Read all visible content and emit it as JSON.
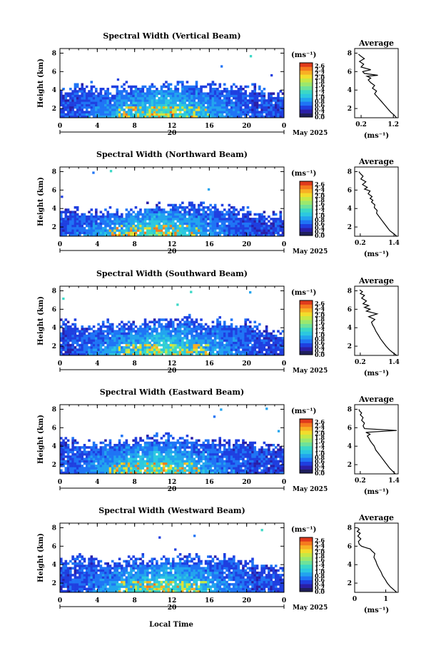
{
  "figure": {
    "xlabel": "Local Time",
    "day_label": "20",
    "month_label": "May 2025"
  },
  "colorbar": {
    "unit": "(ms⁻¹)",
    "ticks": [
      "2.6",
      "2.4",
      "2.2",
      "2.0",
      "1.8",
      "1.6",
      "1.4",
      "1.2",
      "1.0",
      "0.8",
      "0.6",
      "0.4",
      "0.2",
      "0.0"
    ],
    "colors": [
      "#1f1f5c",
      "#2a1fa8",
      "#1f3fe0",
      "#1f74f5",
      "#22a4ee",
      "#2cc8e0",
      "#3bd8c6",
      "#6ee29a",
      "#9be86d",
      "#c6e846",
      "#f2dd2c",
      "#f8b024",
      "#f57a1f",
      "#e03a1c"
    ]
  },
  "chart_data": [
    {
      "type": "heatmap",
      "title": "Spectral Width (Vertical Beam)",
      "ylabel": "Height (km)",
      "x_ticks": [
        "0",
        "4",
        "8",
        "12",
        "16",
        "20",
        "0"
      ],
      "y_ticks": [
        "2",
        "4",
        "6",
        "8"
      ],
      "xlim": [
        0,
        24
      ],
      "ylim": [
        1,
        8.5
      ],
      "echo_top_km": [
        4.0,
        4.2,
        4.4,
        4.3,
        4.2,
        4.3,
        4.4,
        4.5,
        4.6,
        4.4,
        4.5,
        4.6,
        4.6,
        4.7,
        4.6,
        4.5,
        4.6,
        4.5,
        4.4,
        4.4,
        4.2,
        4.1,
        3.8,
        3.6,
        3.5
      ],
      "peak_time_h": 11,
      "peak_width": 2.4
    },
    {
      "type": "line",
      "title": "Average",
      "xlabel": "(ms⁻¹)",
      "x_ticks": [
        "0.2",
        "1.2"
      ],
      "y_ticks": [
        "2",
        "4",
        "6",
        "8"
      ],
      "xlim": [
        0,
        1.35
      ],
      "ylim": [
        1,
        8.5
      ],
      "x": [
        1.3,
        1.22,
        1.12,
        1.02,
        0.92,
        0.82,
        0.72,
        0.62,
        0.68,
        0.55,
        0.62,
        0.5,
        0.42,
        0.5,
        0.38,
        0.72,
        0.3,
        0.25,
        0.5,
        0.2,
        0.28,
        0.15,
        0.3,
        0.18,
        0.12
      ],
      "y": [
        1.0,
        1.3,
        1.6,
        2.0,
        2.4,
        2.8,
        3.2,
        3.6,
        3.9,
        4.2,
        4.5,
        4.8,
        5.1,
        5.3,
        5.5,
        5.6,
        5.8,
        6.0,
        6.2,
        6.5,
        6.8,
        7.1,
        7.4,
        7.7,
        7.9
      ]
    },
    {
      "type": "heatmap",
      "title": "Spectral Width (Northward Beam)",
      "ylabel": "Height (km)",
      "x_ticks": [
        "0",
        "4",
        "8",
        "12",
        "16",
        "20",
        "0"
      ],
      "y_ticks": [
        "2",
        "4",
        "6",
        "8"
      ],
      "xlim": [
        0,
        24
      ],
      "ylim": [
        1,
        8.5
      ],
      "echo_top_km": [
        3.7,
        3.8,
        3.6,
        3.5,
        3.6,
        3.8,
        3.9,
        4.0,
        4.1,
        4.2,
        4.3,
        4.3,
        4.4,
        4.5,
        4.4,
        4.3,
        4.3,
        4.1,
        4.0,
        3.8,
        3.6,
        3.4,
        3.2,
        3.1,
        3.0
      ],
      "peak_time_h": 10,
      "peak_width": 2.5
    },
    {
      "type": "line",
      "title": "Average",
      "xlabel": "(ms⁻¹)",
      "x_ticks": [
        "0.2",
        "1.4"
      ],
      "y_ticks": [
        "2",
        "4",
        "6",
        "8"
      ],
      "xlim": [
        0,
        1.55
      ],
      "ylim": [
        1,
        8.5
      ],
      "x": [
        1.5,
        1.38,
        1.25,
        1.15,
        1.05,
        0.95,
        0.85,
        0.78,
        0.8,
        0.7,
        0.72,
        0.6,
        0.65,
        0.55,
        0.62,
        0.48,
        0.55,
        0.35,
        0.45,
        0.28,
        0.4,
        0.22,
        0.3,
        0.2,
        0.15
      ],
      "y": [
        1.0,
        1.3,
        1.6,
        2.0,
        2.4,
        2.8,
        3.2,
        3.5,
        3.8,
        4.1,
        4.4,
        4.7,
        4.9,
        5.1,
        5.3,
        5.6,
        5.9,
        6.1,
        6.3,
        6.6,
        6.9,
        7.2,
        7.5,
        7.8,
        8.0
      ]
    },
    {
      "type": "heatmap",
      "title": "Spectral Width (Southward Beam)",
      "ylabel": "Height (km)",
      "x_ticks": [
        "0",
        "4",
        "8",
        "12",
        "16",
        "20",
        "0"
      ],
      "y_ticks": [
        "2",
        "4",
        "6",
        "8"
      ],
      "xlim": [
        0,
        24
      ],
      "ylim": [
        1,
        8.5
      ],
      "echo_top_km": [
        4.5,
        4.6,
        4.4,
        4.0,
        4.2,
        4.5,
        4.4,
        4.2,
        4.4,
        4.6,
        4.7,
        4.7,
        4.8,
        4.9,
        4.7,
        4.5,
        4.6,
        4.8,
        4.6,
        4.3,
        4.4,
        4.1,
        3.8,
        3.5,
        3.4
      ],
      "peak_time_h": 11,
      "peak_width": 2.3
    },
    {
      "type": "line",
      "title": "Average",
      "xlabel": "(ms⁻¹)",
      "x_ticks": [
        "0.2",
        "1.4"
      ],
      "y_ticks": [
        "2",
        "4",
        "6",
        "8"
      ],
      "xlim": [
        0,
        1.55
      ],
      "ylim": [
        1,
        8.5
      ],
      "x": [
        1.5,
        1.36,
        1.24,
        1.12,
        1.02,
        0.92,
        0.84,
        0.76,
        0.7,
        0.64,
        0.6,
        0.72,
        0.5,
        0.8,
        0.42,
        0.55,
        0.35,
        0.5,
        0.3,
        0.42,
        0.25,
        0.35,
        0.2,
        0.28,
        0.18
      ],
      "y": [
        1.0,
        1.3,
        1.6,
        2.0,
        2.4,
        2.8,
        3.2,
        3.6,
        4.0,
        4.3,
        4.6,
        4.9,
        5.2,
        5.5,
        5.8,
        6.0,
        6.2,
        6.4,
        6.6,
        6.9,
        7.2,
        7.5,
        7.7,
        7.9,
        8.1
      ]
    },
    {
      "type": "heatmap",
      "title": "Spectral Width (Eastward Beam)",
      "ylabel": "Height (km)",
      "x_ticks": [
        "0",
        "4",
        "8",
        "12",
        "16",
        "20",
        "0"
      ],
      "y_ticks": [
        "2",
        "4",
        "6",
        "8"
      ],
      "xlim": [
        0,
        24
      ],
      "ylim": [
        1,
        8.5
      ],
      "echo_top_km": [
        4.6,
        4.3,
        4.0,
        4.2,
        4.4,
        4.6,
        4.8,
        4.6,
        4.7,
        4.9,
        5.0,
        5.1,
        4.9,
        4.8,
        4.6,
        4.7,
        4.5,
        4.4,
        4.2,
        4.5,
        4.6,
        4.2,
        4.0,
        3.9,
        3.8
      ],
      "peak_time_h": 10,
      "peak_width": 2.5
    },
    {
      "type": "line",
      "title": "Average",
      "xlabel": "(ms⁻¹)",
      "x_ticks": [
        "0.2",
        "1.4"
      ],
      "y_ticks": [
        "2",
        "4",
        "6",
        "8"
      ],
      "xlim": [
        0,
        1.55
      ],
      "ylim": [
        1,
        8.5
      ],
      "x": [
        1.45,
        1.35,
        1.25,
        1.15,
        1.05,
        0.95,
        0.85,
        0.75,
        0.7,
        0.62,
        0.55,
        0.5,
        0.45,
        0.55,
        0.4,
        1.5,
        0.35,
        0.3,
        0.35,
        0.25,
        0.3,
        0.2,
        0.25,
        0.18,
        0.15
      ],
      "y": [
        1.0,
        1.3,
        1.6,
        2.0,
        2.4,
        2.8,
        3.2,
        3.6,
        4.0,
        4.3,
        4.6,
        4.9,
        5.1,
        5.3,
        5.5,
        5.7,
        5.9,
        6.2,
        6.5,
        6.8,
        7.1,
        7.4,
        7.6,
        7.8,
        8.0
      ]
    },
    {
      "type": "heatmap",
      "title": "Spectral Width (Westward Beam)",
      "ylabel": "Height (km)",
      "x_ticks": [
        "0",
        "4",
        "8",
        "12",
        "16",
        "20",
        "0"
      ],
      "y_ticks": [
        "2",
        "4",
        "6",
        "8"
      ],
      "xlim": [
        0,
        24
      ],
      "ylim": [
        1,
        8.5
      ],
      "echo_top_km": [
        4.3,
        4.5,
        4.8,
        4.6,
        4.4,
        4.2,
        4.3,
        4.5,
        4.6,
        4.5,
        4.7,
        4.8,
        4.6,
        4.8,
        4.7,
        4.5,
        4.6,
        4.7,
        4.5,
        4.4,
        4.3,
        4.0,
        3.8,
        3.6,
        3.5
      ],
      "peak_time_h": 11,
      "peak_width": 2.4
    },
    {
      "type": "line",
      "title": "Average",
      "xlabel": "(ms⁻¹)",
      "x_ticks": [
        "0",
        "1"
      ],
      "y_ticks": [
        "2",
        "4",
        "6",
        "8"
      ],
      "xlim": [
        0,
        1.4
      ],
      "ylim": [
        1,
        8.5
      ],
      "x": [
        1.35,
        1.25,
        1.15,
        1.05,
        0.98,
        0.9,
        0.85,
        0.78,
        0.72,
        0.68,
        0.62,
        0.65,
        0.55,
        0.5,
        0.4,
        0.3,
        0.22,
        0.15,
        0.12,
        0.2,
        0.1,
        0.18,
        0.08,
        0.15,
        0.1
      ],
      "y": [
        1.0,
        1.3,
        1.6,
        2.0,
        2.4,
        2.8,
        3.2,
        3.6,
        4.0,
        4.4,
        4.8,
        5.2,
        5.5,
        5.7,
        5.8,
        5.9,
        6.0,
        6.2,
        6.5,
        6.8,
        7.1,
        7.4,
        7.6,
        7.8,
        8.0
      ]
    }
  ]
}
